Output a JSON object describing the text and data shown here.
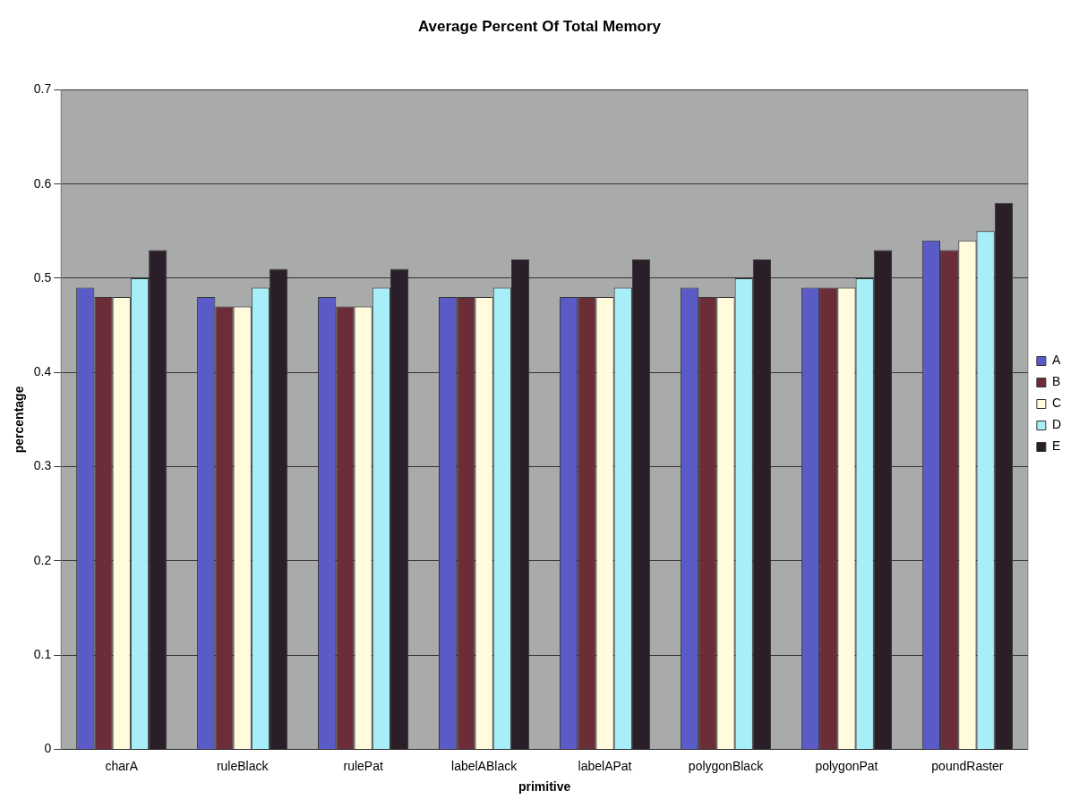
{
  "chart_data": {
    "type": "bar",
    "title": "Average Percent Of Total Memory",
    "xlabel": "primitive",
    "ylabel": "percentage",
    "categories": [
      "charA",
      "ruleBlack",
      "rulePat",
      "labelABlack",
      "labelAPat",
      "polygonBlack",
      "polygonPat",
      "poundRaster"
    ],
    "series": [
      {
        "name": "A",
        "color": "#5b5bc8",
        "values": [
          0.49,
          0.48,
          0.48,
          0.48,
          0.48,
          0.49,
          0.49,
          0.54
        ]
      },
      {
        "name": "B",
        "color": "#6b2e38",
        "values": [
          0.48,
          0.47,
          0.47,
          0.48,
          0.48,
          0.48,
          0.49,
          0.53
        ]
      },
      {
        "name": "C",
        "color": "#fffbdc",
        "values": [
          0.48,
          0.47,
          0.47,
          0.48,
          0.48,
          0.48,
          0.49,
          0.54
        ]
      },
      {
        "name": "D",
        "color": "#a8eef8",
        "values": [
          0.5,
          0.49,
          0.49,
          0.49,
          0.49,
          0.5,
          0.5,
          0.55
        ]
      },
      {
        "name": "E",
        "color": "#2a1f28",
        "values": [
          0.53,
          0.51,
          0.51,
          0.52,
          0.52,
          0.52,
          0.53,
          0.58
        ]
      }
    ],
    "ylim": [
      0,
      0.7
    ],
    "yticks": [
      0,
      0.1,
      0.2,
      0.3,
      0.4,
      0.5,
      0.6,
      0.7
    ],
    "grid": "y",
    "legend": "right"
  }
}
